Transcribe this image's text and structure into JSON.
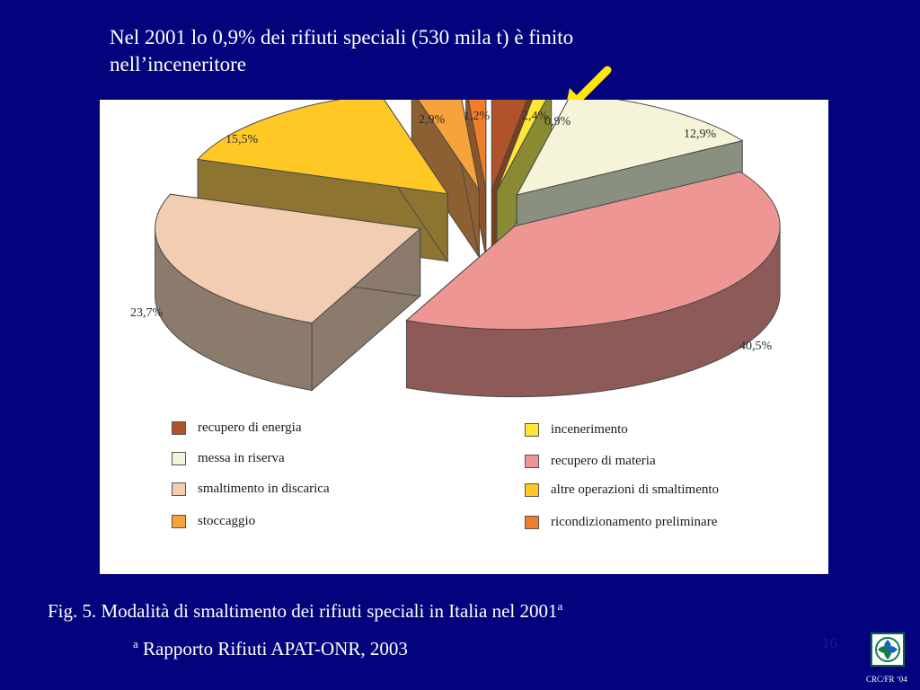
{
  "slide": {
    "title": "Nel 2001 lo 0,9% dei rifiuti speciali (530 mila t) è finito\nnell’inceneritore",
    "caption": "Fig. 5.  Modalità di smaltimento dei rifiuti speciali in Italia nel 2001",
    "caption_sup": "a",
    "source_sup": "a",
    "source": "Rapporto Rifiuti APAT-ONR, 2003",
    "page_number": "16",
    "footer": "CRC/FR ‘04",
    "logo_icon": "crc-logo-icon",
    "arrow_color": "#ffe800"
  },
  "chart_data": {
    "type": "pie",
    "title": "",
    "slices": [
      {
        "label": "recupero di energia",
        "value": 2.4,
        "value_label": "2,4%",
        "color": "#b0532a",
        "side_color": "#7a3f1e"
      },
      {
        "label": "incenerimento",
        "value": 0.9,
        "value_label": "0,9%",
        "color": "#ffe733",
        "side_color": "#8a8a32"
      },
      {
        "label": "messa in riserva",
        "value": 12.9,
        "value_label": "12,9%",
        "color": "#f6f4d8",
        "side_color": "#8a9080"
      },
      {
        "label": "recupero di materia",
        "value": 40.5,
        "value_label": "40,5%",
        "color": "#ee9694",
        "side_color": "#8e5a58"
      },
      {
        "label": "smaltimento in discarica",
        "value": 23.7,
        "value_label": "23,7%",
        "color": "#f2cdb2",
        "side_color": "#8b7b6c"
      },
      {
        "label": "altre operazioni di smaltimento",
        "value": 15.5,
        "value_label": "15,5%",
        "color": "#ffc825",
        "side_color": "#8d7430"
      },
      {
        "label": "stoccaggio",
        "value": 2.9,
        "value_label": "2,9%",
        "color": "#f5a33a",
        "side_color": "#8c6030"
      },
      {
        "label": "ricondizionamento preliminare",
        "value": 1.2,
        "value_label": "1,2%",
        "color": "#f07d2a",
        "side_color": "#8c5528"
      }
    ],
    "legend": {
      "placement": "bottom",
      "left_column": [
        {
          "label": "recupero di energia",
          "color": "#b0532a"
        },
        {
          "label": "messa in riserva",
          "color": "#f6f4d8"
        },
        {
          "label": "smaltimento in discarica",
          "color": "#f2cdb2"
        },
        {
          "label": "stoccaggio",
          "color": "#f5a33a"
        }
      ],
      "right_column": [
        {
          "label": "incenerimento",
          "color": "#ffe733"
        },
        {
          "label": "recupero di materia",
          "color": "#ee9694"
        },
        {
          "label": "altre operazioni di smaltimento",
          "color": "#ffc825"
        },
        {
          "label": "ricondizionamento preliminare",
          "color": "#f07d2a"
        }
      ]
    }
  }
}
